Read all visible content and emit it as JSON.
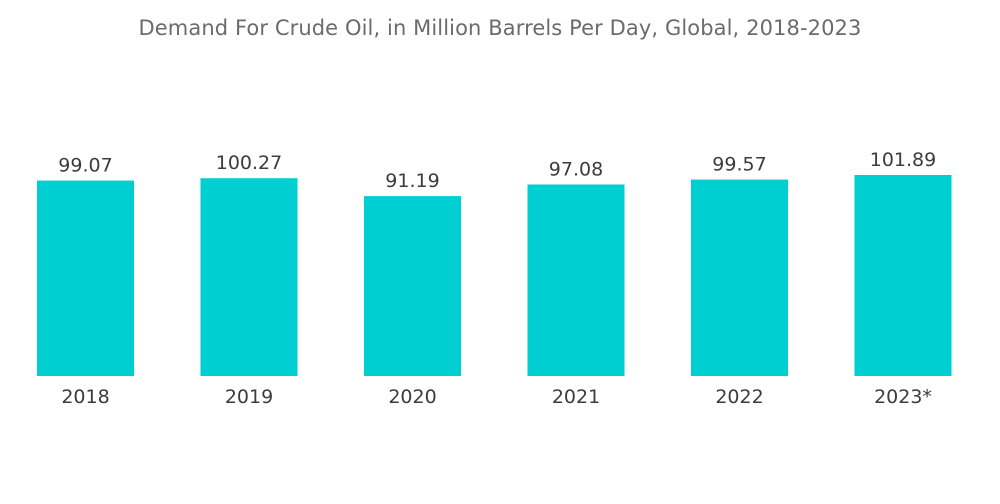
{
  "chart_data": {
    "type": "bar",
    "title": "Demand For Crude Oil, in Million Barrels Per Day, Global, 2018-2023",
    "categories": [
      "2018",
      "2019",
      "2020",
      "2021",
      "2022",
      "2023*"
    ],
    "values": [
      99.07,
      100.27,
      91.19,
      97.08,
      99.57,
      101.89
    ],
    "value_labels": [
      "99.07",
      "100.27",
      "91.19",
      "97.08",
      "99.57",
      "101.89"
    ],
    "xlabel": "",
    "ylabel": "",
    "ylim": [
      0,
      101.89
    ],
    "grid": false,
    "legend": "none",
    "bar_color": "#00cfd1",
    "label_color": "#3c3c3c",
    "title_color": "#6b6b6b"
  }
}
